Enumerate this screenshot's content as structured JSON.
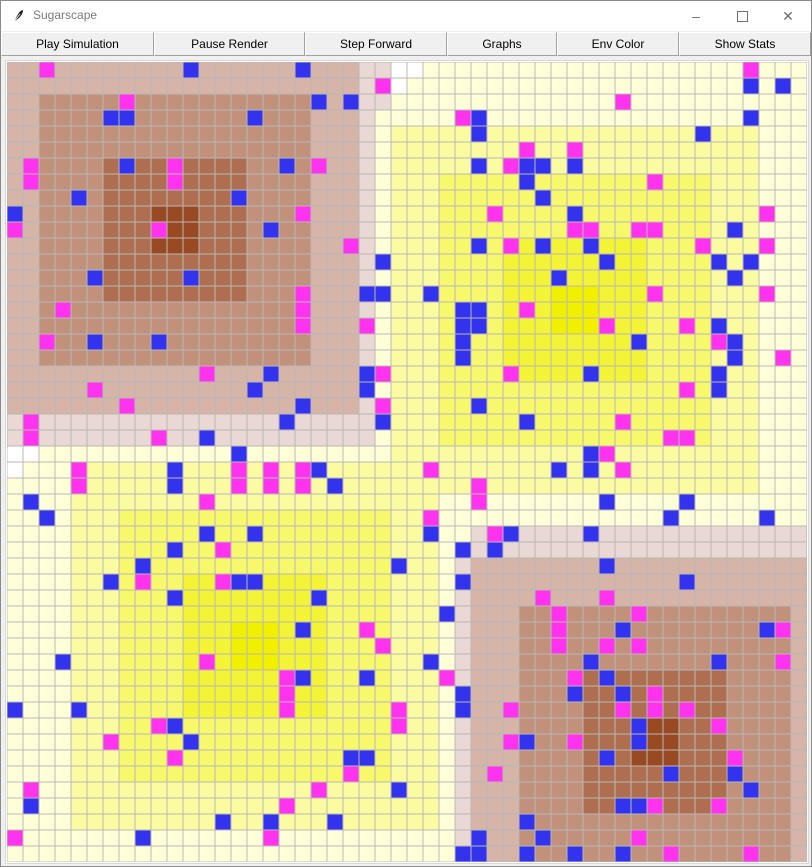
{
  "window": {
    "title": "Sugarscape",
    "controls": [
      "minimize",
      "maximize",
      "close"
    ]
  },
  "toolbar": {
    "buttons": [
      {
        "id": "play",
        "label": "Play Simulation"
      },
      {
        "id": "pause",
        "label": "Pause Render"
      },
      {
        "id": "step",
        "label": "Step Forward"
      },
      {
        "id": "graphs",
        "label": "Graphs"
      },
      {
        "id": "envcolor",
        "label": "Env Color"
      },
      {
        "id": "stats",
        "label": "Show Stats"
      }
    ]
  },
  "grid": {
    "rows": 50,
    "cols": 50,
    "colors": {
      "grid_line": "#b8b8b8",
      "agent_blue": "#3333ee",
      "agent_magenta": "#ff33ee",
      "spice_low": "#ead8d4",
      "spice_high": "#9a4a22",
      "sugar_low": "#ffffd8",
      "sugar_high": "#f0f000"
    },
    "resource_peaks": [
      {
        "type": "spice",
        "row": 10,
        "col": 10
      },
      {
        "type": "sugar",
        "row": 15,
        "col": 35
      },
      {
        "type": "sugar",
        "row": 36,
        "col": 15
      },
      {
        "type": "spice",
        "row": 42,
        "col": 40
      }
    ],
    "agents_blue": [
      [
        0,
        11
      ],
      [
        0,
        18
      ],
      [
        1,
        46
      ],
      [
        1,
        48
      ],
      [
        2,
        19
      ],
      [
        2,
        21
      ],
      [
        3,
        6
      ],
      [
        3,
        7
      ],
      [
        3,
        15
      ],
      [
        3,
        29
      ],
      [
        3,
        46
      ],
      [
        4,
        29
      ],
      [
        4,
        43
      ],
      [
        6,
        7
      ],
      [
        6,
        17
      ],
      [
        6,
        29
      ],
      [
        6,
        32
      ],
      [
        6,
        33
      ],
      [
        6,
        35
      ],
      [
        7,
        32
      ],
      [
        8,
        4
      ],
      [
        8,
        14
      ],
      [
        8,
        33
      ],
      [
        9,
        0
      ],
      [
        9,
        35
      ],
      [
        10,
        16
      ],
      [
        10,
        45
      ],
      [
        11,
        29
      ],
      [
        11,
        33
      ],
      [
        11,
        36
      ],
      [
        12,
        23
      ],
      [
        12,
        37
      ],
      [
        12,
        44
      ],
      [
        12,
        46
      ],
      [
        13,
        5
      ],
      [
        13,
        11
      ],
      [
        13,
        34
      ],
      [
        13,
        45
      ],
      [
        14,
        22
      ],
      [
        14,
        23
      ],
      [
        14,
        26
      ],
      [
        15,
        28
      ],
      [
        15,
        29
      ],
      [
        16,
        28
      ],
      [
        16,
        29
      ],
      [
        16,
        44
      ],
      [
        17,
        5
      ],
      [
        17,
        9
      ],
      [
        17,
        28
      ],
      [
        17,
        45
      ],
      [
        17,
        39
      ],
      [
        18,
        28
      ],
      [
        18,
        45
      ],
      [
        19,
        16
      ],
      [
        19,
        22
      ],
      [
        19,
        36
      ],
      [
        19,
        44
      ],
      [
        20,
        15
      ],
      [
        20,
        22
      ],
      [
        20,
        44
      ],
      [
        21,
        18
      ],
      [
        21,
        29
      ],
      [
        22,
        17
      ],
      [
        22,
        23
      ],
      [
        22,
        32
      ],
      [
        23,
        12
      ],
      [
        24,
        14
      ],
      [
        24,
        36
      ],
      [
        25,
        10
      ],
      [
        25,
        19
      ],
      [
        25,
        34
      ],
      [
        25,
        36
      ],
      [
        26,
        10
      ],
      [
        26,
        20
      ],
      [
        27,
        1
      ],
      [
        27,
        37
      ],
      [
        27,
        42
      ],
      [
        28,
        2
      ],
      [
        28,
        41
      ],
      [
        28,
        47
      ],
      [
        29,
        12
      ],
      [
        29,
        15
      ],
      [
        29,
        26
      ],
      [
        29,
        31
      ],
      [
        29,
        36
      ],
      [
        30,
        10
      ],
      [
        30,
        28
      ],
      [
        30,
        30
      ],
      [
        31,
        8
      ],
      [
        31,
        24
      ],
      [
        31,
        37
      ],
      [
        32,
        6
      ],
      [
        32,
        14
      ],
      [
        32,
        15
      ],
      [
        32,
        28
      ],
      [
        32,
        42
      ],
      [
        33,
        10
      ],
      [
        33,
        19
      ],
      [
        34,
        27
      ],
      [
        35,
        18
      ],
      [
        35,
        38
      ],
      [
        35,
        47
      ],
      [
        37,
        3
      ],
      [
        37,
        26
      ],
      [
        37,
        36
      ],
      [
        37,
        44
      ],
      [
        38,
        18
      ],
      [
        38,
        22
      ],
      [
        38,
        37
      ],
      [
        39,
        28
      ],
      [
        39,
        35
      ],
      [
        39,
        38
      ],
      [
        40,
        0
      ],
      [
        40,
        4
      ],
      [
        40,
        28
      ],
      [
        41,
        10
      ],
      [
        41,
        39
      ],
      [
        42,
        11
      ],
      [
        42,
        32
      ],
      [
        42,
        39
      ],
      [
        43,
        21
      ],
      [
        43,
        22
      ],
      [
        43,
        37
      ],
      [
        44,
        41
      ],
      [
        44,
        45
      ],
      [
        45,
        24
      ],
      [
        45,
        46
      ],
      [
        46,
        1
      ],
      [
        46,
        38
      ],
      [
        46,
        39
      ],
      [
        47,
        13
      ],
      [
        47,
        16
      ],
      [
        47,
        20
      ],
      [
        47,
        32
      ],
      [
        48,
        8
      ],
      [
        48,
        29
      ],
      [
        48,
        33
      ],
      [
        49,
        28
      ],
      [
        49,
        29
      ],
      [
        49,
        32
      ],
      [
        49,
        35
      ],
      [
        49,
        38
      ]
    ],
    "agents_magenta": [
      [
        0,
        2
      ],
      [
        0,
        46
      ],
      [
        1,
        23
      ],
      [
        2,
        7
      ],
      [
        2,
        38
      ],
      [
        3,
        28
      ],
      [
        4,
        43
      ],
      [
        5,
        32
      ],
      [
        5,
        35
      ],
      [
        6,
        1
      ],
      [
        6,
        10
      ],
      [
        6,
        19
      ],
      [
        6,
        31
      ],
      [
        7,
        1
      ],
      [
        7,
        10
      ],
      [
        7,
        40
      ],
      [
        9,
        18
      ],
      [
        9,
        30
      ],
      [
        9,
        47
      ],
      [
        10,
        0
      ],
      [
        10,
        9
      ],
      [
        10,
        35
      ],
      [
        10,
        36
      ],
      [
        10,
        39
      ],
      [
        10,
        40
      ],
      [
        11,
        21
      ],
      [
        11,
        31
      ],
      [
        11,
        43
      ],
      [
        11,
        47
      ],
      [
        12,
        46
      ],
      [
        14,
        18
      ],
      [
        14,
        40
      ],
      [
        14,
        47
      ],
      [
        15,
        3
      ],
      [
        15,
        18
      ],
      [
        15,
        32
      ],
      [
        16,
        18
      ],
      [
        16,
        22
      ],
      [
        16,
        37
      ],
      [
        16,
        42
      ],
      [
        16,
        44
      ],
      [
        17,
        2
      ],
      [
        17,
        44
      ],
      [
        18,
        48
      ],
      [
        19,
        12
      ],
      [
        19,
        23
      ],
      [
        19,
        31
      ],
      [
        20,
        5
      ],
      [
        20,
        42
      ],
      [
        21,
        7
      ],
      [
        21,
        23
      ],
      [
        22,
        1
      ],
      [
        22,
        38
      ],
      [
        23,
        1
      ],
      [
        23,
        9
      ],
      [
        23,
        41
      ],
      [
        23,
        42
      ],
      [
        24,
        37
      ],
      [
        25,
        4
      ],
      [
        25,
        14
      ],
      [
        25,
        16
      ],
      [
        25,
        18
      ],
      [
        25,
        26
      ],
      [
        25,
        38
      ],
      [
        26,
        4
      ],
      [
        26,
        14
      ],
      [
        26,
        16
      ],
      [
        26,
        18
      ],
      [
        26,
        29
      ],
      [
        27,
        29
      ],
      [
        27,
        12
      ],
      [
        28,
        26
      ],
      [
        29,
        30
      ],
      [
        30,
        13
      ],
      [
        30,
        28
      ],
      [
        30,
        10
      ],
      [
        32,
        8
      ],
      [
        32,
        13
      ],
      [
        32,
        14
      ],
      [
        32,
        28
      ],
      [
        33,
        33
      ],
      [
        33,
        37
      ],
      [
        34,
        34
      ],
      [
        34,
        39
      ],
      [
        35,
        22
      ],
      [
        35,
        34
      ],
      [
        35,
        48
      ],
      [
        36,
        23
      ],
      [
        36,
        34
      ],
      [
        36,
        37
      ],
      [
        36,
        39
      ],
      [
        37,
        12
      ],
      [
        37,
        48
      ],
      [
        38,
        17
      ],
      [
        38,
        27
      ],
      [
        38,
        35
      ],
      [
        39,
        17
      ],
      [
        39,
        28
      ],
      [
        39,
        40
      ],
      [
        40,
        17
      ],
      [
        40,
        24
      ],
      [
        40,
        31
      ],
      [
        40,
        40
      ],
      [
        40,
        38
      ],
      [
        40,
        42
      ],
      [
        41,
        9
      ],
      [
        41,
        24
      ],
      [
        41,
        44
      ],
      [
        42,
        6
      ],
      [
        42,
        31
      ],
      [
        42,
        35
      ],
      [
        43,
        10
      ],
      [
        43,
        45
      ],
      [
        44,
        21
      ],
      [
        44,
        30
      ],
      [
        44,
        41
      ],
      [
        45,
        1
      ],
      [
        45,
        19
      ],
      [
        46,
        17
      ],
      [
        46,
        40
      ],
      [
        46,
        44
      ],
      [
        47,
        16
      ],
      [
        47,
        20
      ],
      [
        48,
        0
      ],
      [
        48,
        16
      ],
      [
        48,
        39
      ],
      [
        49,
        41
      ],
      [
        49,
        46
      ]
    ]
  }
}
